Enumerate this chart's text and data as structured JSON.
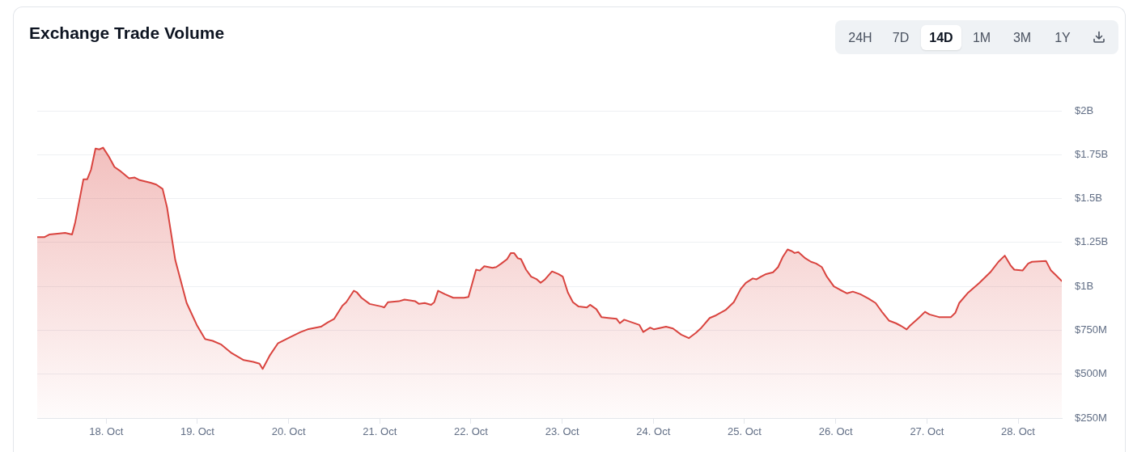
{
  "chart_data": {
    "type": "area",
    "title": "Exchange Trade Volume",
    "color": "#d9443f",
    "grid": "y",
    "annotations": [
      "24H",
      "7D",
      "14D",
      "1M",
      "3M",
      "1Y"
    ],
    "xlim": [
      "--10-17T05:50",
      "--10-28T11:30"
    ],
    "xticks": [
      {
        "value": "--10-18",
        "label": "18. Oct"
      },
      {
        "value": "--10-19",
        "label": "19. Oct"
      },
      {
        "value": "--10-20",
        "label": "20. Oct"
      },
      {
        "value": "--10-21",
        "label": "21. Oct"
      },
      {
        "value": "--10-22",
        "label": "22. Oct"
      },
      {
        "value": "--10-23",
        "label": "23. Oct"
      },
      {
        "value": "--10-24",
        "label": "24. Oct"
      },
      {
        "value": "--10-25",
        "label": "25. Oct"
      },
      {
        "value": "--10-26",
        "label": "26. Oct"
      },
      {
        "value": "--10-27",
        "label": "27. Oct"
      },
      {
        "value": "--10-28",
        "label": "28. Oct"
      }
    ],
    "ylim": [
      250000000,
      2000000000
    ],
    "yticks": [
      {
        "value": 250000000,
        "label": "$250M"
      },
      {
        "value": 500000000,
        "label": "$500M"
      },
      {
        "value": 750000000,
        "label": "$750M"
      },
      {
        "value": 1000000000,
        "label": "$1B"
      },
      {
        "value": 1250000000,
        "label": "$1.25B"
      },
      {
        "value": 1500000000,
        "label": "$1.5B"
      },
      {
        "value": 1750000000,
        "label": "$1.75B"
      },
      {
        "value": 2000000000,
        "label": "$2B"
      }
    ],
    "x": [
      "--10-17T05:50",
      "--10-17T07:40",
      "--10-17T09:00",
      "--10-17T11:10",
      "--10-17T13:10",
      "--10-17T15:00",
      "--10-17T15:50",
      "--10-17T18:00",
      "--10-17T19:00",
      "--10-17T20:00",
      "--10-17T21:10",
      "--10-17T22:10",
      "--10-17T23:10",
      "--10-18T00:40",
      "--10-18T02:10",
      "--10-18T03:30",
      "--10-18T06:00",
      "--10-18T07:30",
      "--10-18T08:50",
      "--10-18T11:40",
      "--10-18T13:10",
      "--10-18T14:50",
      "--10-18T16:00",
      "--10-18T18:10",
      "--10-18T19:20",
      "--10-18T21:10",
      "--10-18T23:50",
      "--10-19T02:00",
      "--10-19T04:00",
      "--10-19T06:10",
      "--10-19T09:00",
      "--10-19T12:10",
      "--10-19T14:40",
      "--10-19T16:20",
      "--10-19T17:10",
      "--10-19T19:00",
      "--10-19T21:10",
      "--10-20T00:20",
      "--10-20T03:10",
      "--10-20T05:00",
      "--10-20T08:30",
      "--10-20T10:20",
      "--10-20T12:00",
      "--10-20T14:10",
      "--10-20T15:10",
      "--10-20T17:10",
      "--10-20T18:00",
      "--10-20T19:10",
      "--10-20T21:20",
      "--10-21T00:30",
      "--10-21T01:10",
      "--10-21T02:10",
      "--10-21T05:00",
      "--10-21T06:30",
      "--10-21T09:20",
      "--10-21T10:20",
      "--10-21T11:50",
      "--10-21T13:30",
      "--10-21T14:20",
      "--10-21T15:20",
      "--10-21T17:10",
      "--10-21T19:20",
      "--10-21T22:10",
      "--10-21T23:20",
      "--10-22T01:20",
      "--10-22T02:20",
      "--10-22T03:30",
      "--10-22T05:40",
      "--10-22T06:40",
      "--10-22T08:00",
      "--10-22T09:30",
      "--10-22T10:30",
      "--10-22T11:20",
      "--10-22T12:20",
      "--10-22T13:10",
      "--10-22T14:30",
      "--10-22T15:50",
      "--10-22T17:20",
      "--10-22T18:20",
      "--10-22T19:30",
      "--10-22T21:20",
      "--10-22T23:00",
      "--10-23T00:10",
      "--10-23T01:30",
      "--10-23T02:50",
      "--10-23T04:20",
      "--10-23T06:30",
      "--10-23T07:20",
      "--10-23T09:00",
      "--10-23T10:20",
      "--10-23T12:10",
      "--10-23T14:20",
      "--10-23T15:10",
      "--10-23T16:20",
      "--10-23T20:20",
      "--10-23T21:20",
      "--10-23T23:10",
      "--10-24T00:10",
      "--10-24T03:20",
      "--10-24T05:10",
      "--10-24T07:20",
      "--10-24T09:20",
      "--10-24T11:10",
      "--10-24T12:40",
      "--10-24T14:50",
      "--10-24T16:30",
      "--10-24T19:00",
      "--10-24T21:10",
      "--10-24T23:00",
      "--10-25T00:20",
      "--10-25T02:10",
      "--10-25T03:10",
      "--10-25T04:20",
      "--10-25T05:40",
      "--10-25T07:30",
      "--10-25T08:50",
      "--10-25T10:00",
      "--10-25T11:20",
      "--10-25T12:30",
      "--10-25T13:10",
      "--10-25T14:10",
      "--10-25T16:00",
      "--10-25T17:30",
      "--10-25T18:50",
      "--10-25T20:20",
      "--10-25T21:40",
      "--10-25T23:30",
      "--10-26T01:10",
      "--10-26T03:00",
      "--10-26T04:30",
      "--10-26T06:30",
      "--10-26T08:40",
      "--10-26T10:30",
      "--10-26T12:20",
      "--10-26T14:00",
      "--10-26T15:50",
      "--10-26T17:10",
      "--10-26T18:40",
      "--10-26T19:30",
      "--10-26T21:50",
      "--10-26T23:30",
      "--10-27T00:40",
      "--10-27T03:10",
      "--10-27T06:20",
      "--10-27T07:30",
      "--10-27T08:30",
      "--10-27T10:40",
      "--10-27T13:50",
      "--10-27T16:40",
      "--10-27T18:50",
      "--10-27T20:30",
      "--10-27T22:00",
      "--10-27T23:00",
      "--10-28T01:10",
      "--10-28T02:40",
      "--10-28T03:40",
      "--10-28T07:20",
      "--10-28T08:40",
      "--10-28T09:40",
      "--10-28T11:30"
    ],
    "values": [
      1280000000,
      1280000000,
      1295000000,
      1300000000,
      1305000000,
      1295000000,
      1365000000,
      1610000000,
      1610000000,
      1665000000,
      1785000000,
      1780000000,
      1790000000,
      1740000000,
      1680000000,
      1660000000,
      1615000000,
      1620000000,
      1605000000,
      1590000000,
      1580000000,
      1555000000,
      1450000000,
      1150000000,
      1055000000,
      905000000,
      780000000,
      700000000,
      690000000,
      670000000,
      620000000,
      580000000,
      570000000,
      560000000,
      530000000,
      605000000,
      675000000,
      710000000,
      740000000,
      755000000,
      770000000,
      795000000,
      815000000,
      890000000,
      910000000,
      975000000,
      965000000,
      935000000,
      900000000,
      885000000,
      880000000,
      910000000,
      915000000,
      925000000,
      915000000,
      900000000,
      905000000,
      895000000,
      910000000,
      975000000,
      955000000,
      935000000,
      935000000,
      940000000,
      1095000000,
      1090000000,
      1115000000,
      1105000000,
      1110000000,
      1130000000,
      1155000000,
      1190000000,
      1190000000,
      1160000000,
      1155000000,
      1095000000,
      1055000000,
      1040000000,
      1020000000,
      1040000000,
      1085000000,
      1070000000,
      1055000000,
      965000000,
      910000000,
      885000000,
      880000000,
      895000000,
      870000000,
      825000000,
      820000000,
      815000000,
      790000000,
      810000000,
      780000000,
      740000000,
      765000000,
      755000000,
      770000000,
      760000000,
      725000000,
      705000000,
      735000000,
      765000000,
      820000000,
      835000000,
      865000000,
      910000000,
      985000000,
      1020000000,
      1045000000,
      1040000000,
      1055000000,
      1070000000,
      1080000000,
      1110000000,
      1165000000,
      1210000000,
      1200000000,
      1190000000,
      1195000000,
      1160000000,
      1140000000,
      1130000000,
      1110000000,
      1055000000,
      1000000000,
      980000000,
      960000000,
      970000000,
      955000000,
      930000000,
      905000000,
      850000000,
      805000000,
      790000000,
      775000000,
      755000000,
      775000000,
      820000000,
      855000000,
      840000000,
      825000000,
      825000000,
      850000000,
      905000000,
      960000000,
      1020000000,
      1080000000,
      1140000000,
      1175000000,
      1120000000,
      1095000000,
      1090000000,
      1130000000,
      1140000000,
      1145000000,
      1090000000,
      1070000000,
      1030000000
    ]
  }
}
